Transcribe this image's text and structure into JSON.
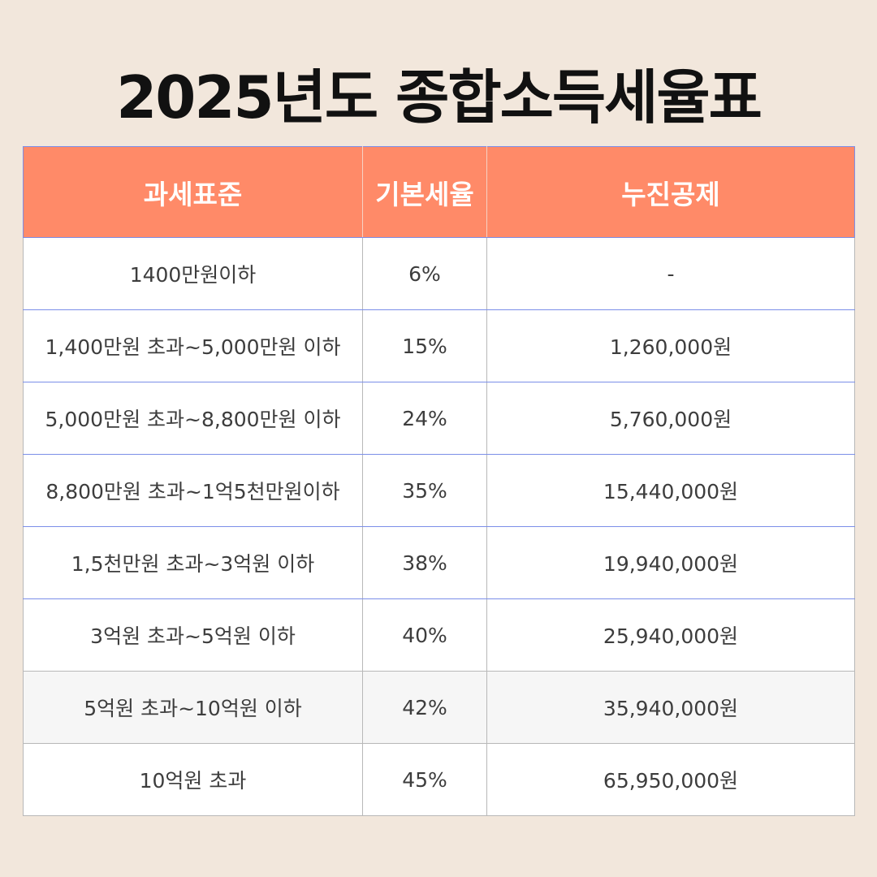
{
  "title": "2025년도 종합소득세율표",
  "header": {
    "col1": "과세표준",
    "col2": "기본세율",
    "col3": "누진공제"
  },
  "rows": [
    {
      "bracket": "1400만원이하",
      "rate": "6%",
      "deduction": "-"
    },
    {
      "bracket": "1,400만원 초과~5,000만원 이하",
      "rate": "15%",
      "deduction": "1,260,000원"
    },
    {
      "bracket": "5,000만원 초과~8,800만원 이하",
      "rate": "24%",
      "deduction": "5,760,000원"
    },
    {
      "bracket": "8,800만원 초과~1억5천만원이하",
      "rate": "35%",
      "deduction": "15,440,000원"
    },
    {
      "bracket": "1,5천만원 초과~3억원 이하",
      "rate": "38%",
      "deduction": "19,940,000원"
    },
    {
      "bracket": "3억원 초과~5억원 이하",
      "rate": "40%",
      "deduction": "25,940,000원"
    },
    {
      "bracket": "5억원 초과~10억원 이하",
      "rate": "42%",
      "deduction": "35,940,000원"
    },
    {
      "bracket": "10억원 초과",
      "rate": "45%",
      "deduction": "65,950,000원"
    }
  ],
  "colors": {
    "background": "#f2e7dc",
    "header_background": "#ff8a68",
    "header_text": "#ffffff",
    "border_blue": "#7b8ee8"
  }
}
